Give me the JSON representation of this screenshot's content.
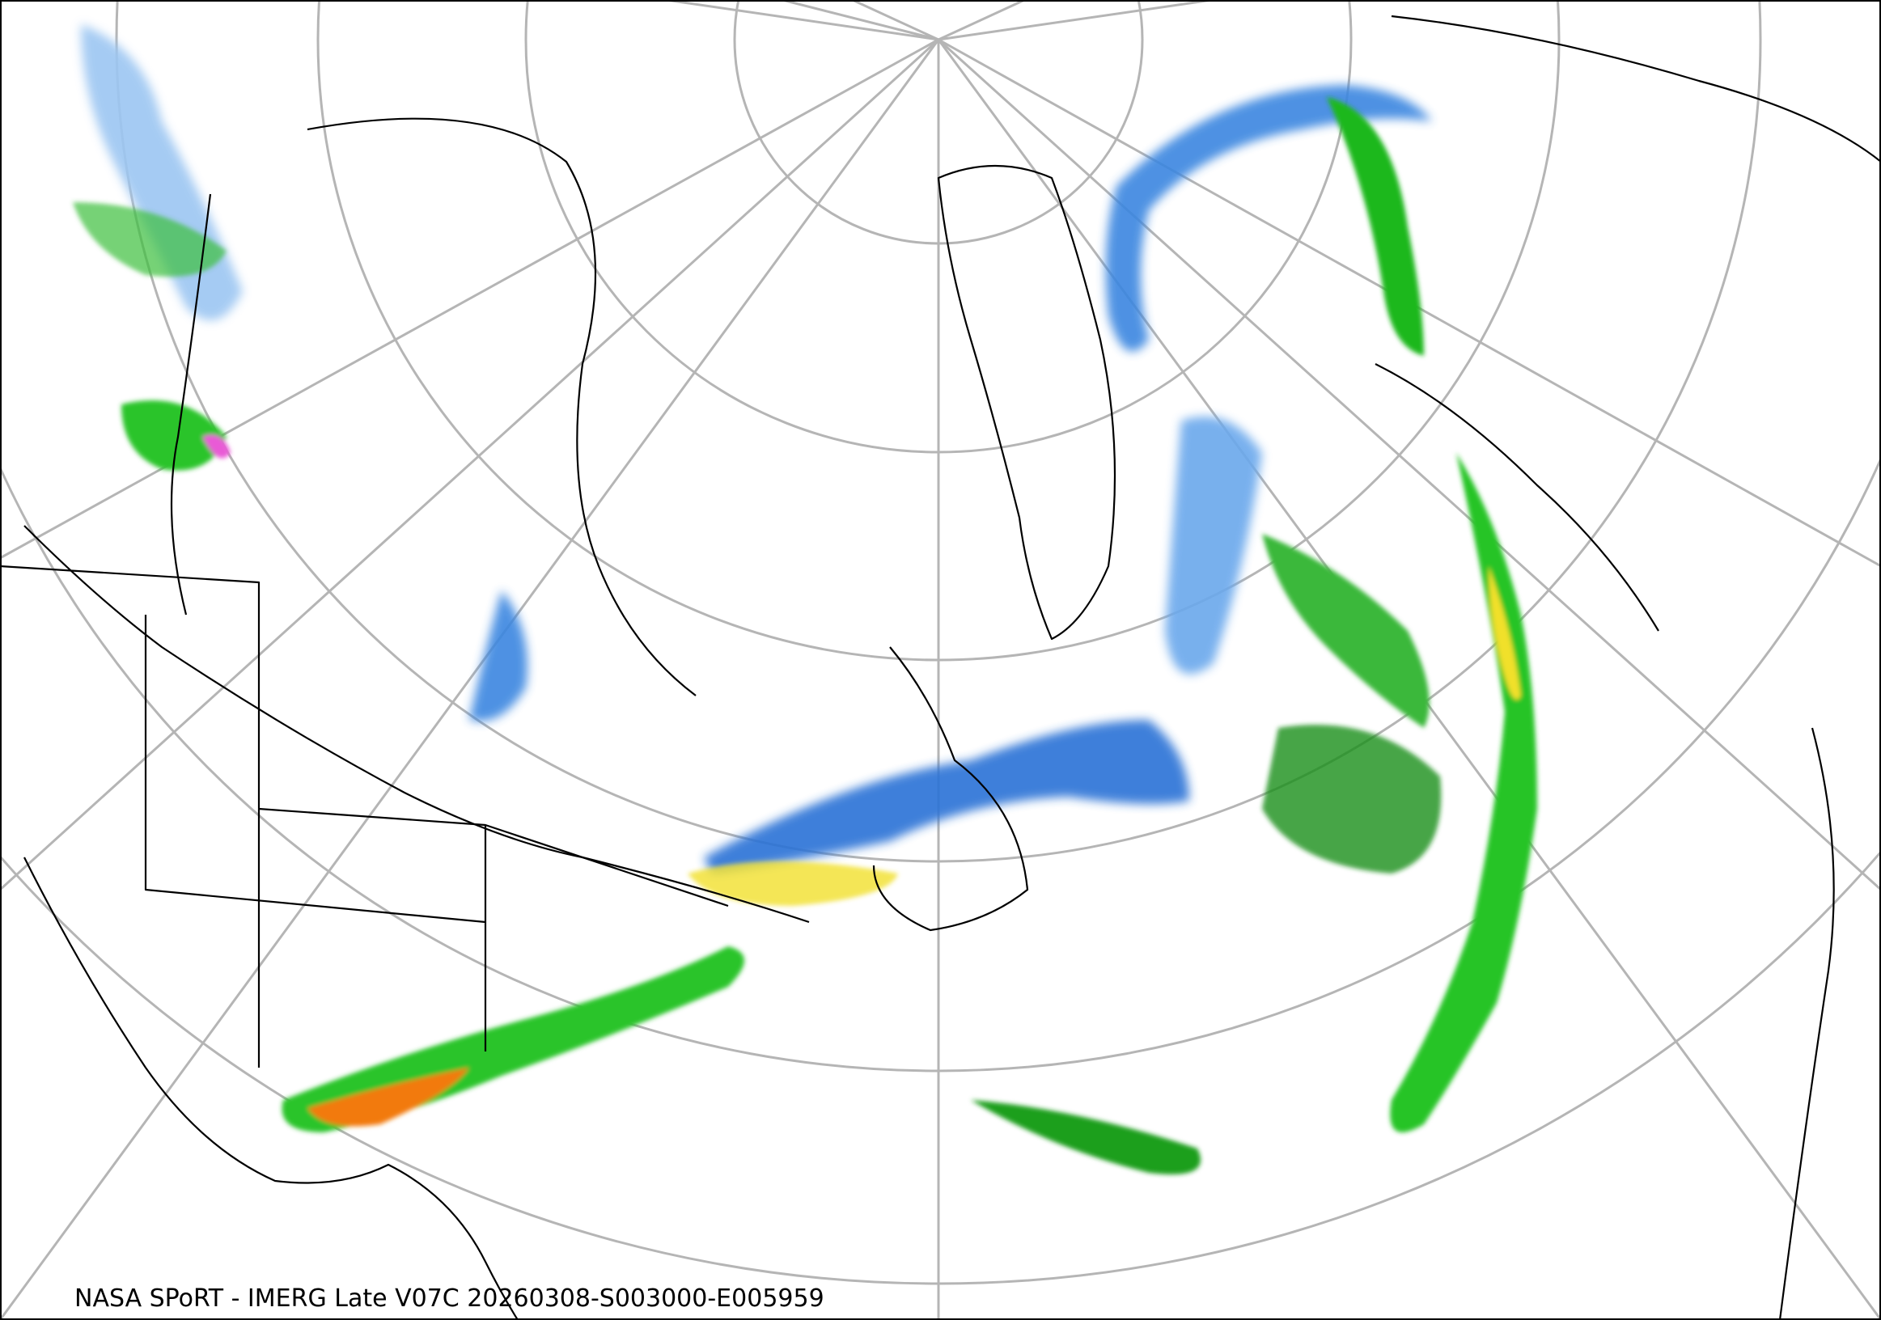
{
  "caption": "NASA SPoRT - IMERG Late V07C 20260308-S003000-E005959"
}
